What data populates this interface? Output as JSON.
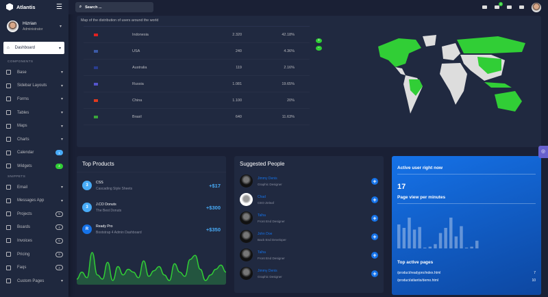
{
  "brand": "Atlantis",
  "user": {
    "name": "Hizrian",
    "role": "Administrator"
  },
  "nav": {
    "active": "Dashboard",
    "components_label": "COMPONENTS",
    "components": [
      {
        "label": "Base",
        "icon": "layers-icon"
      },
      {
        "label": "Sidebar Layouts",
        "icon": "th-list-icon"
      },
      {
        "label": "Forms",
        "icon": "pen-square-icon"
      },
      {
        "label": "Tables",
        "icon": "table-icon"
      },
      {
        "label": "Maps",
        "icon": "map-marker-icon"
      },
      {
        "label": "Charts",
        "icon": "chart-bar-icon"
      },
      {
        "label": "Calendar",
        "icon": "calendar-icon",
        "badge": "1",
        "badge_color": "#48abf7"
      },
      {
        "label": "Widgets",
        "icon": "desktop-icon",
        "badge": "4",
        "badge_color": "#31ce36"
      }
    ],
    "snippets_label": "SNIPPETS",
    "snippets": [
      {
        "label": "Email",
        "icon": "envelope-icon"
      },
      {
        "label": "Messages App",
        "icon": "paper-plane-icon"
      },
      {
        "label": "Projects",
        "icon": "file-signature-icon",
        "badge": "5"
      },
      {
        "label": "Boards",
        "icon": "th-icon",
        "badge": "4"
      },
      {
        "label": "Invoices",
        "icon": "invoice-icon",
        "badge": "6"
      },
      {
        "label": "Pricing",
        "icon": "tags-icon",
        "badge": "6"
      },
      {
        "label": "Faqs",
        "icon": "question-icon",
        "badge": "4"
      },
      {
        "label": "Custom Pages",
        "icon": "paint-roller-icon"
      }
    ]
  },
  "search": {
    "placeholder": "Search ..."
  },
  "topbar": {
    "notification_count": "4"
  },
  "map": {
    "title": "Map of the distribution of users around the world",
    "rows": [
      {
        "country": "Indonesia",
        "users": "2.320",
        "pct": "42.18%",
        "flag": "#e02020"
      },
      {
        "country": "USA",
        "users": "240",
        "pct": "4.36%",
        "flag": "#3c5aa6"
      },
      {
        "country": "Australia",
        "users": "119",
        "pct": "2.16%",
        "flag": "#2a3d8f"
      },
      {
        "country": "Russia",
        "users": "1.081",
        "pct": "19.65%",
        "flag": "#5555cc"
      },
      {
        "country": "China",
        "users": "1.100",
        "pct": "20%",
        "flag": "#e03a1e"
      },
      {
        "country": "Brasil",
        "users": "640",
        "pct": "11.63%",
        "flag": "#3aa63a"
      }
    ],
    "zoom_in": "+",
    "zoom_out": "−",
    "highlight_color": "#31ce36"
  },
  "top_products": {
    "title": "Top Products",
    "items": [
      {
        "name": "CSS",
        "desc": "Cascading Style Sheets",
        "price": "+$17",
        "icon": "css3-icon",
        "glyph": "3"
      },
      {
        "name": "J.CO Donuts",
        "desc": "The Best Donuts",
        "price": "+$300",
        "icon": "css3-icon",
        "glyph": "3"
      },
      {
        "name": "Ready Pro",
        "desc": "Bootstrap 4 Admin Dashboard",
        "price": "+$350",
        "icon": "letter-r-icon",
        "glyph": "R"
      }
    ],
    "sparkline": [
      3,
      8,
      4,
      22,
      6,
      3,
      15,
      2,
      12,
      6,
      10,
      8,
      4,
      16,
      5,
      9,
      12,
      6,
      2,
      14,
      8,
      5,
      17,
      20,
      10,
      2,
      6,
      10,
      13,
      8
    ]
  },
  "suggested_people": {
    "title": "Suggested People",
    "people": [
      {
        "name": "Jimmy Denis",
        "job": "Graphic Designer"
      },
      {
        "name": "Chad",
        "job": "CEO Zeleaf"
      },
      {
        "name": "Talha",
        "job": "Front End Designer"
      },
      {
        "name": "John Doe",
        "job": "Back End Developer"
      },
      {
        "name": "Talha",
        "job": "Front End Designer"
      },
      {
        "name": "Jimmy Denis",
        "job": "Graphic Designer"
      }
    ]
  },
  "realtime": {
    "active_title": "Active user right now",
    "active_count": "17",
    "pageview_title": "Page view per minutes",
    "pageviews": [
      28,
      24,
      36,
      22,
      25,
      1,
      2,
      5,
      18,
      24,
      36,
      14,
      26,
      1,
      2,
      9
    ],
    "top_pages_title": "Top active pages",
    "pages": [
      {
        "path": "/product/readypro/index.html",
        "count": "7"
      },
      {
        "path": "/product/atlantis/demo.html",
        "count": "10"
      }
    ]
  }
}
